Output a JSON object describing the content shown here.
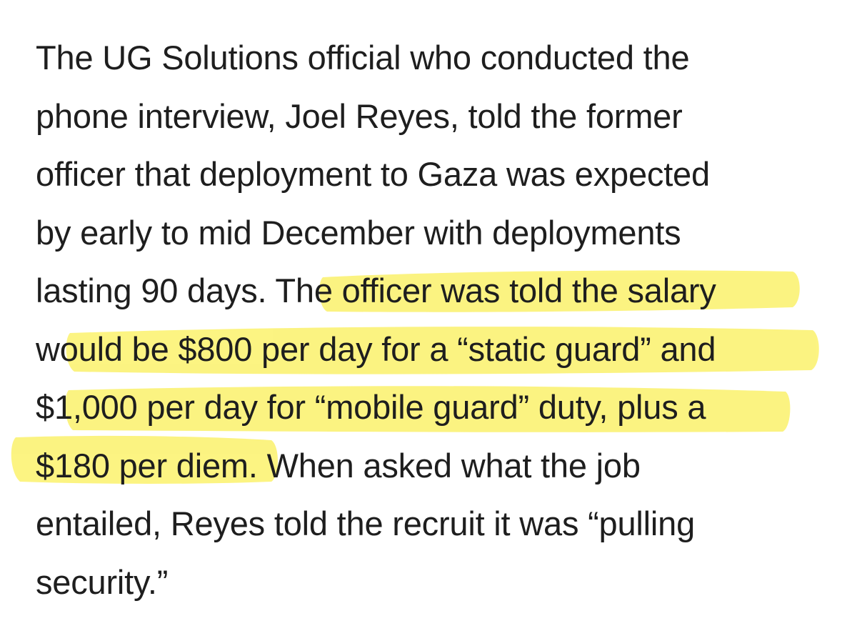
{
  "article": {
    "lines": [
      "The UG Solutions official who conducted the",
      "phone interview, Joel Reyes, told the former",
      "officer that deployment to Gaza was expected",
      "by early to mid December with deployments",
      "lasting 90 days. The officer was told the salary",
      "would be $800 per day for a “static guard” and",
      "$1,000 per day for “mobile guard” duty, plus a",
      "$180 per diem. When asked what the job",
      "entailed, Reyes told the recruit it was “pulling",
      "security.”"
    ]
  },
  "colors": {
    "text": "#1e1e1e",
    "highlighter": "#fbf26c",
    "background": "#ffffff"
  }
}
